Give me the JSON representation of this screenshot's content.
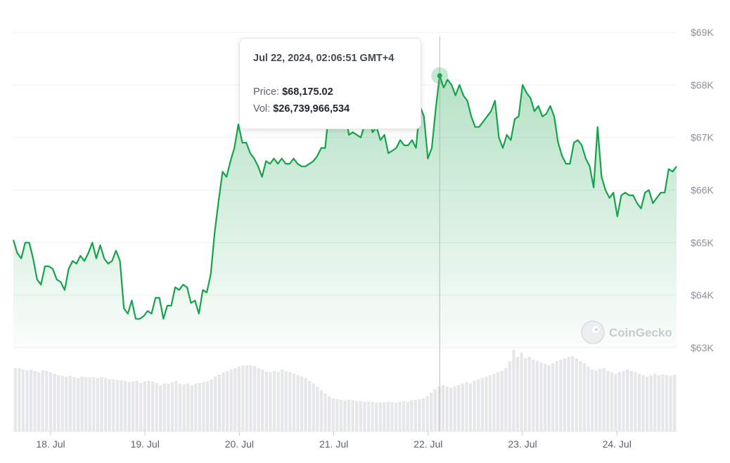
{
  "chart_data": {
    "type": "area",
    "title": "",
    "xlabel": "",
    "ylabel": "",
    "ylim": [
      62600,
      69300
    ],
    "x_ticks": [
      "18. Jul",
      "19. Jul",
      "20. Jul",
      "21. Jul",
      "22. Jul",
      "23. Jul",
      "24. Jul"
    ],
    "y_ticks": [
      {
        "value": 69000,
        "label": "$69K"
      },
      {
        "value": 68000,
        "label": "$68K"
      },
      {
        "value": 67000,
        "label": "$67K"
      },
      {
        "value": 66000,
        "label": "$66K"
      },
      {
        "value": 65000,
        "label": "$65K"
      },
      {
        "value": 64000,
        "label": "$64K"
      },
      {
        "value": 63000,
        "label": "$63K"
      }
    ],
    "grid": true,
    "series": [
      {
        "color": "#16a34a",
        "values": [
          65050,
          64800,
          64700,
          65000,
          65000,
          64700,
          64300,
          64200,
          64550,
          64550,
          64500,
          64300,
          64250,
          64100,
          64500,
          64650,
          64600,
          64750,
          64650,
          64800,
          65000,
          64700,
          64950,
          64700,
          64600,
          64650,
          64850,
          64650,
          63750,
          63650,
          63900,
          63550,
          63550,
          63600,
          63700,
          63650,
          63950,
          63950,
          63550,
          63800,
          63800,
          64150,
          64100,
          64200,
          64150,
          63850,
          63900,
          63650,
          64100,
          64050,
          64400,
          65200,
          65800,
          66350,
          66250,
          66550,
          66800,
          67250,
          66900,
          66900,
          66700,
          66600,
          66450,
          66250,
          66550,
          66500,
          66600,
          66500,
          66600,
          66500,
          66500,
          66600,
          66500,
          66450,
          66450,
          66500,
          66550,
          66650,
          66800,
          66800,
          67550,
          67650,
          67800,
          67550,
          67550,
          67050,
          67100,
          67050,
          67000,
          67250,
          67400,
          67100,
          67200,
          66950,
          67050,
          66700,
          66750,
          66800,
          66950,
          66850,
          66850,
          66950,
          66800,
          67600,
          67400,
          66600,
          66800,
          67550,
          68175,
          67950,
          68100,
          68000,
          67800,
          68000,
          67800,
          67700,
          67400,
          67200,
          67200,
          67300,
          67400,
          67500,
          67700,
          67000,
          66800,
          67050,
          66950,
          67350,
          67400,
          68000,
          67850,
          67750,
          67500,
          67600,
          67400,
          67450,
          67600,
          67400,
          66900,
          66650,
          66500,
          66500,
          66900,
          66950,
          66850,
          66600,
          66450,
          66050,
          67200,
          66250,
          66000,
          65850,
          65950,
          65500,
          65900,
          65950,
          65900,
          65900,
          65750,
          65650,
          65950,
          66000,
          65750,
          65850,
          65950,
          65950,
          66400,
          66350,
          66450
        ]
      }
    ],
    "volume": [
      90,
      90,
      88,
      87,
      88,
      86,
      84,
      87,
      86,
      84,
      82,
      80,
      79,
      78,
      79,
      77,
      76,
      78,
      77,
      77,
      77,
      76,
      77,
      76,
      74,
      74,
      73,
      73,
      72,
      70,
      71,
      72,
      69,
      71,
      72,
      71,
      69,
      66,
      68,
      68,
      70,
      72,
      68,
      67,
      68,
      66,
      68,
      69,
      70,
      71,
      74,
      78,
      81,
      84,
      86,
      88,
      90,
      92,
      94,
      94,
      94,
      93,
      90,
      88,
      85,
      84,
      86,
      85,
      88,
      86,
      84,
      82,
      80,
      78,
      76,
      72,
      68,
      64,
      59,
      54,
      50,
      47,
      46,
      45,
      44,
      45,
      44,
      43,
      43,
      42,
      42,
      42,
      41,
      41,
      41,
      42,
      42,
      41,
      42,
      43,
      42,
      44,
      45,
      46,
      47,
      50,
      55,
      60,
      64,
      66,
      64,
      62,
      64,
      66,
      68,
      70,
      68,
      72,
      74,
      76,
      78,
      80,
      82,
      84,
      86,
      90,
      100,
      116,
      106,
      112,
      104,
      106,
      102,
      100,
      98,
      96,
      94,
      97,
      100,
      102,
      104,
      106,
      107,
      104,
      100,
      97,
      92,
      88,
      87,
      89,
      90,
      86,
      84,
      82,
      84,
      86,
      88,
      86,
      84,
      82,
      80,
      78,
      80,
      82,
      80,
      81,
      80,
      79,
      81
    ]
  },
  "tooltip": {
    "date": "Jul 22, 2024, 02:06:51 GMT+4",
    "price_label": "Price:",
    "price_value": "$68,175.02",
    "vol_label": "Vol:",
    "vol_value": "$26,739,966,534"
  },
  "hover_index": 108,
  "watermark": "CoinGecko",
  "colors": {
    "line": "#16a34a",
    "fill": "#16a34a",
    "grid": "#eef0f2",
    "volume": "#e6e7e9",
    "crosshair": "#b4b8be"
  }
}
